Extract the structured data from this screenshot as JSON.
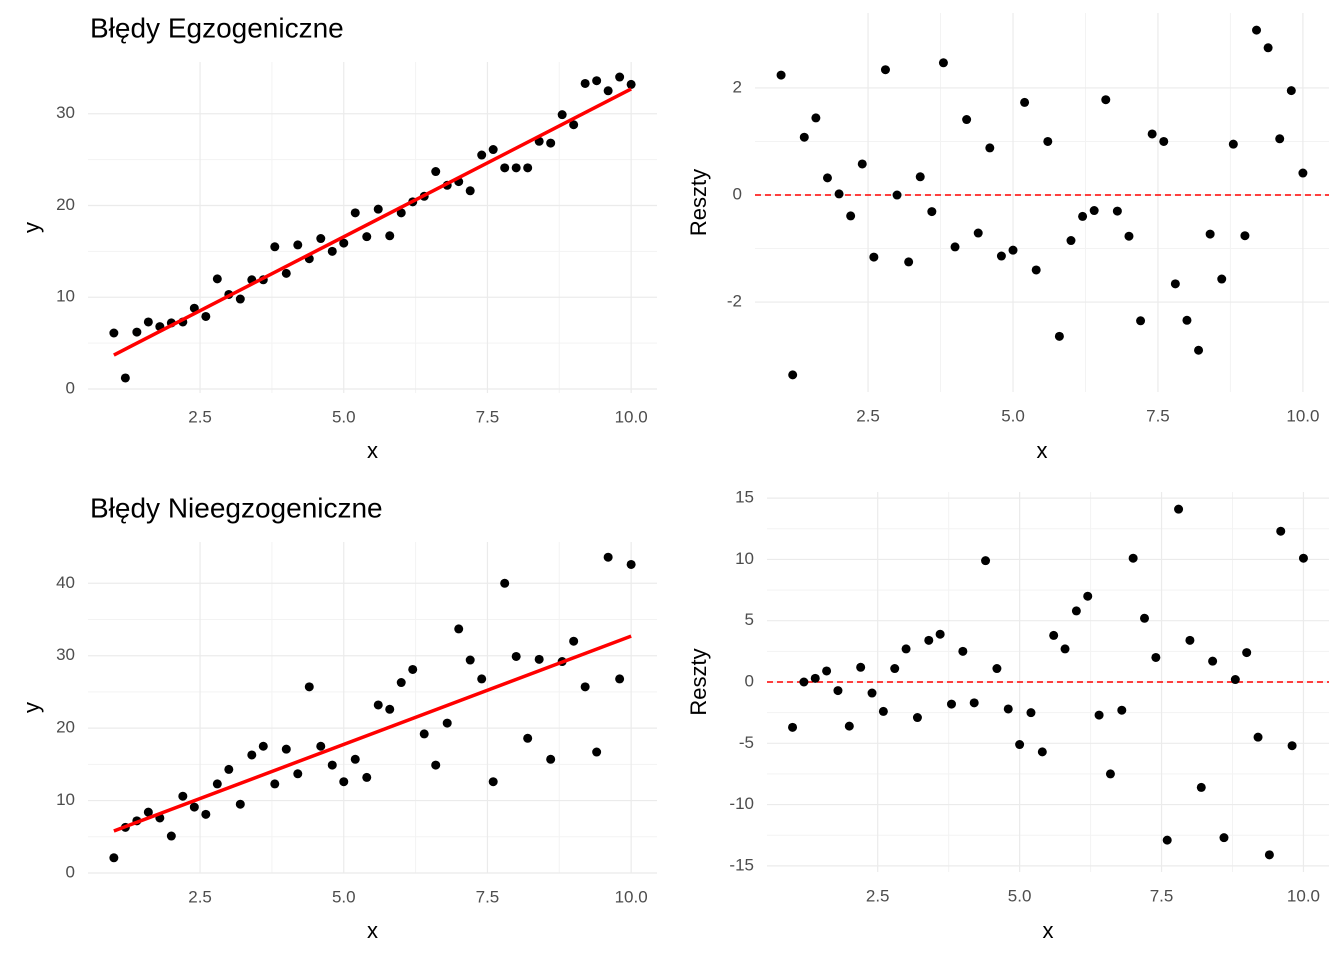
{
  "chart_data": [
    {
      "type": "scatter",
      "title": "Błędy Egzogeniczne",
      "xlabel": "x",
      "ylabel": "y",
      "x": [
        1,
        1.2,
        1.4,
        1.6,
        1.8,
        2,
        2.2,
        2.4,
        2.6,
        2.8,
        3,
        3.2,
        3.4,
        3.6,
        3.8,
        4,
        4.2,
        4.4,
        4.6,
        4.8,
        5,
        5.2,
        5.4,
        5.6,
        5.8,
        6,
        6.2,
        6.4,
        6.6,
        6.8,
        7,
        7.2,
        7.4,
        7.6,
        7.8,
        8,
        8.2,
        8.4,
        8.6,
        8.8,
        9,
        9.2,
        9.4,
        9.6,
        9.8,
        10
      ],
      "values": [
        6.1,
        1.2,
        6.2,
        7.3,
        6.8,
        7.2,
        7.3,
        8.8,
        7.9,
        12.0,
        10.3,
        9.8,
        11.9,
        11.9,
        15.5,
        12.6,
        15.7,
        14.2,
        16.4,
        15.0,
        15.9,
        19.2,
        16.6,
        19.6,
        16.7,
        19.2,
        20.4,
        21.0,
        23.7,
        22.2,
        22.6,
        21.6,
        25.5,
        26.1,
        24.1,
        24.1,
        24.1,
        27.0,
        26.8,
        29.9,
        28.8,
        33.3,
        33.6,
        32.5,
        34.0,
        33.2
      ],
      "color": "#000000",
      "fit": {
        "x": [
          1,
          10
        ],
        "values": [
          3.7,
          32.7
        ],
        "color": "#ff0000"
      },
      "xlim": [
        0.55,
        10.45
      ],
      "ylim": [
        -0.44,
        35.64
      ],
      "xticks": [
        {
          "value": 2.5,
          "label": "2.5"
        },
        {
          "value": 5,
          "label": "5.0"
        },
        {
          "value": 7.5,
          "label": "7.5"
        },
        {
          "value": 10,
          "label": "10.0"
        }
      ],
      "yticks": [
        0,
        10,
        20,
        30
      ],
      "grid": true
    },
    {
      "type": "scatter",
      "xlabel": "x",
      "ylabel": "Reszty",
      "x": [
        1,
        1.2,
        1.4,
        1.6,
        1.8,
        2,
        2.2,
        2.4,
        2.6,
        2.8,
        3,
        3.2,
        3.4,
        3.6,
        3.8,
        4,
        4.2,
        4.4,
        4.6,
        4.8,
        5,
        5.2,
        5.4,
        5.6,
        5.8,
        6,
        6.2,
        6.4,
        6.6,
        6.8,
        7,
        7.2,
        7.4,
        7.6,
        7.8,
        8,
        8.2,
        8.4,
        8.6,
        8.8,
        9,
        9.2,
        9.4,
        9.6,
        9.8,
        10
      ],
      "values": [
        2.24,
        -3.36,
        1.08,
        1.44,
        0.32,
        0.02,
        -0.39,
        0.58,
        -1.16,
        2.34,
        0.0,
        -1.25,
        0.34,
        -0.31,
        2.47,
        -0.97,
        1.41,
        -0.71,
        0.88,
        -1.14,
        -1.03,
        1.73,
        -1.4,
        1.0,
        -2.64,
        -0.85,
        -0.4,
        -0.29,
        1.78,
        -0.3,
        -0.77,
        -2.35,
        1.14,
        1.0,
        -1.66,
        -2.34,
        -2.9,
        -0.73,
        -1.57,
        0.95,
        -0.76,
        3.08,
        2.75,
        1.05,
        1.95,
        0.41
      ],
      "color": "#000000",
      "reference_line": {
        "value": 0,
        "color": "#ff0000",
        "dashed": true
      },
      "xlim": [
        0.55,
        10.45
      ],
      "ylim": [
        -3.68,
        3.4
      ],
      "xticks": [
        {
          "value": 2.5,
          "label": "2.5"
        },
        {
          "value": 5,
          "label": "5.0"
        },
        {
          "value": 7.5,
          "label": "7.5"
        },
        {
          "value": 10,
          "label": "10.0"
        }
      ],
      "yticks": [
        -2,
        0,
        2
      ],
      "grid": true
    },
    {
      "type": "scatter",
      "title": "Błędy Nieegzogeniczne",
      "xlabel": "x",
      "ylabel": "y",
      "x": [
        1,
        1.2,
        1.4,
        1.6,
        1.8,
        2,
        2.2,
        2.4,
        2.6,
        2.8,
        3,
        3.2,
        3.4,
        3.6,
        3.8,
        4,
        4.2,
        4.4,
        4.6,
        4.8,
        5,
        5.2,
        5.4,
        5.6,
        5.8,
        6,
        6.2,
        6.4,
        6.6,
        6.8,
        7,
        7.2,
        7.4,
        7.6,
        7.8,
        8,
        8.2,
        8.4,
        8.6,
        8.8,
        9,
        9.2,
        9.4,
        9.6,
        9.8,
        10
      ],
      "values": [
        2.1,
        6.3,
        7.2,
        8.4,
        7.6,
        5.1,
        10.6,
        9.1,
        8.1,
        12.3,
        14.3,
        9.5,
        16.3,
        17.5,
        12.3,
        17.1,
        13.7,
        25.7,
        17.5,
        14.9,
        12.6,
        15.7,
        13.2,
        23.2,
        22.6,
        26.3,
        28.1,
        19.2,
        14.9,
        20.7,
        33.7,
        29.4,
        26.8,
        12.6,
        40.0,
        29.9,
        18.6,
        29.5,
        15.7,
        29.2,
        32.0,
        25.7,
        16.7,
        43.6,
        26.8,
        42.6
      ],
      "color": "#000000",
      "fit": {
        "x": [
          1,
          10
        ],
        "values": [
          5.8,
          32.7
        ],
        "color": "#ff0000"
      },
      "xlim": [
        0.55,
        10.45
      ],
      "ylim": [
        0,
        45.7
      ],
      "xticks": [
        {
          "value": 2.5,
          "label": "2.5"
        },
        {
          "value": 5,
          "label": "5.0"
        },
        {
          "value": 7.5,
          "label": "7.5"
        },
        {
          "value": 10,
          "label": "10.0"
        }
      ],
      "yticks": [
        0,
        10,
        20,
        30,
        40
      ],
      "grid": true
    },
    {
      "type": "scatter",
      "xlabel": "x",
      "ylabel": "Reszty",
      "x": [
        1,
        1.2,
        1.4,
        1.6,
        1.8,
        2,
        2.2,
        2.4,
        2.6,
        2.8,
        3,
        3.2,
        3.4,
        3.6,
        3.8,
        4,
        4.2,
        4.4,
        4.6,
        4.8,
        5,
        5.2,
        5.4,
        5.6,
        5.8,
        6,
        6.2,
        6.4,
        6.6,
        6.8,
        7,
        7.2,
        7.4,
        7.6,
        7.8,
        8,
        8.2,
        8.4,
        8.6,
        8.8,
        9,
        9.2,
        9.4,
        9.6,
        9.8,
        10
      ],
      "values": [
        -3.7,
        0.0,
        0.3,
        0.9,
        -0.7,
        -3.6,
        1.2,
        -0.9,
        -2.4,
        1.1,
        2.7,
        -2.9,
        3.4,
        3.9,
        -1.8,
        2.5,
        -1.7,
        9.9,
        1.1,
        -2.2,
        -5.1,
        -2.5,
        -5.7,
        3.8,
        2.7,
        5.8,
        7.0,
        -2.7,
        -7.5,
        -2.3,
        10.1,
        5.2,
        2.0,
        -12.9,
        14.1,
        3.4,
        -8.6,
        1.7,
        -12.7,
        0.2,
        2.4,
        -4.5,
        -14.1,
        12.3,
        -5.2,
        10.1
      ],
      "color": "#000000",
      "reference_line": {
        "value": 0,
        "color": "#ff0000",
        "dashed": true
      },
      "xlim": [
        0.55,
        10.45
      ],
      "ylim": [
        -15.5,
        15.5
      ],
      "xticks": [
        {
          "value": 2.5,
          "label": "2.5"
        },
        {
          "value": 5,
          "label": "5.0"
        },
        {
          "value": 7.5,
          "label": "7.5"
        },
        {
          "value": 10,
          "label": "10.0"
        }
      ],
      "yticks": [
        -15,
        -10,
        -5,
        0,
        5,
        10,
        15
      ],
      "grid": true
    }
  ]
}
